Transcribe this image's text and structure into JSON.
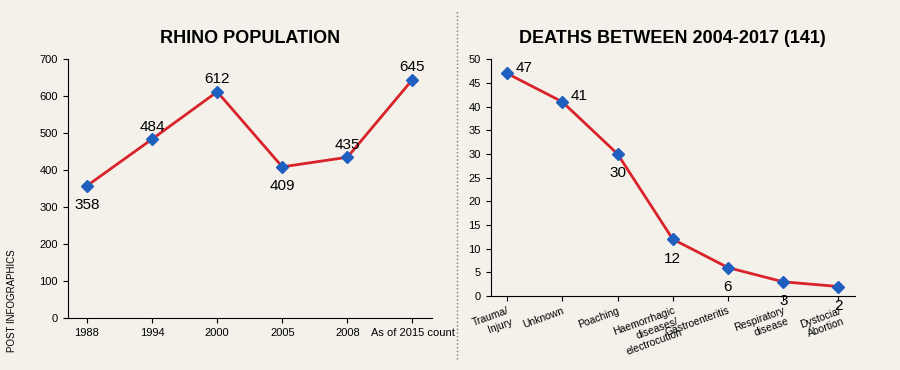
{
  "chart_data": [
    {
      "type": "line",
      "title": "RHINO POPULATION",
      "categories": [
        "1988",
        "1994",
        "2000",
        "2005",
        "2008",
        "As of 2015 count"
      ],
      "values": [
        358,
        484,
        612,
        409,
        435,
        645
      ],
      "ylim": [
        0,
        700
      ],
      "yticks": [
        0,
        100,
        200,
        300,
        400,
        500,
        600,
        700
      ],
      "color": "#d9232a",
      "marker": "diamond",
      "line_style": "solid",
      "data_labels": true
    },
    {
      "type": "line",
      "title": "DEATHS BETWEEN 2004-2017 (141)",
      "categories": [
        "Trauma/\nInjury",
        "Unknown",
        "Poaching",
        "Haemorrhagic\ndiseases/\nelectrocution",
        "Gastroenteritis",
        "Respiratory\ndisease",
        "Dystocia/\nAbortion"
      ],
      "values": [
        47,
        41,
        30,
        12,
        6,
        3,
        2
      ],
      "ylim": [
        0,
        50
      ],
      "yticks": [
        0,
        5,
        10,
        15,
        20,
        25,
        30,
        35,
        40,
        45,
        50
      ],
      "color": "#d9232a",
      "marker": "diamond",
      "line_style": "solid",
      "data_labels": true
    }
  ],
  "credit": "POST INFOGRAPHICS"
}
